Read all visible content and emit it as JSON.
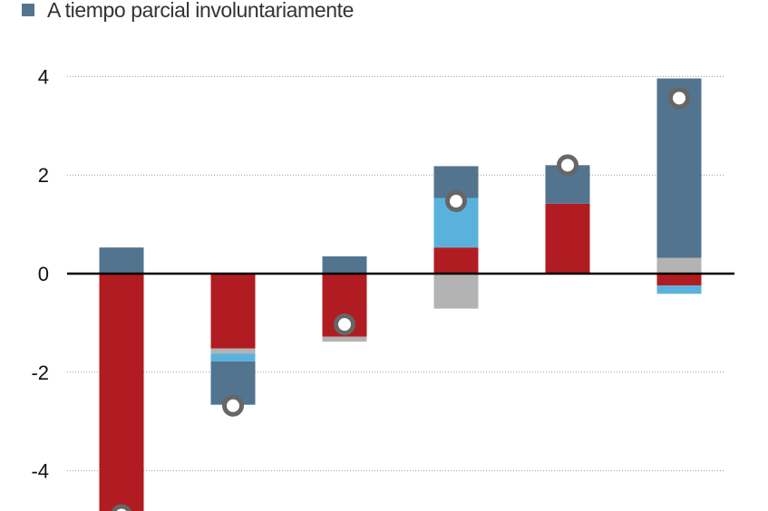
{
  "legend": {
    "label": "A tiempo parcial involuntariamente",
    "color": "#52748f"
  },
  "colors": {
    "involuntary_part_time": "#52748f",
    "red_component": "#b01c22",
    "light_blue_component": "#5ab2dc",
    "gray_component": "#b3b3b3",
    "marker_ring": "#666666",
    "zero_line": "#000000",
    "grid": "#999999"
  },
  "chart_data": {
    "type": "bar",
    "stacked": true,
    "ylim": [
      -4.9,
      4.3
    ],
    "yticks": [
      4,
      2,
      0,
      -2,
      -4
    ],
    "ytick_labels": [
      "4",
      "2",
      "0",
      "-2",
      "-4"
    ],
    "grid": "horizontal dotted",
    "legend_position": "top-left",
    "groups": [
      {
        "segments": [
          {
            "component": "involuntary_part_time",
            "start": 0,
            "end": 0.53
          },
          {
            "component": "red_component",
            "start": 0,
            "end": -4.9
          }
        ],
        "marker": -4.9
      },
      {
        "segments": [
          {
            "component": "red_component",
            "start": 0,
            "end": -1.52
          },
          {
            "component": "gray_component",
            "start": -1.52,
            "end": -1.62
          },
          {
            "component": "light_blue_component",
            "start": -1.62,
            "end": -1.78
          },
          {
            "component": "involuntary_part_time",
            "start": -1.78,
            "end": -2.66
          }
        ],
        "marker": -2.68
      },
      {
        "segments": [
          {
            "component": "involuntary_part_time",
            "start": 0,
            "end": 0.35
          },
          {
            "component": "red_component",
            "start": 0,
            "end": -1.28
          },
          {
            "component": "gray_component",
            "start": -1.28,
            "end": -1.38
          }
        ],
        "marker": -1.03
      },
      {
        "segments": [
          {
            "component": "red_component",
            "start": 0,
            "end": 0.53
          },
          {
            "component": "light_blue_component",
            "start": 0.53,
            "end": 1.53
          },
          {
            "component": "involuntary_part_time",
            "start": 1.53,
            "end": 2.18
          },
          {
            "component": "gray_component",
            "start": 0,
            "end": -0.71
          }
        ],
        "marker": 1.47
      },
      {
        "segments": [
          {
            "component": "red_component",
            "start": 0,
            "end": 1.42
          },
          {
            "component": "involuntary_part_time",
            "start": 1.42,
            "end": 2.2
          }
        ],
        "marker": 2.2
      },
      {
        "segments": [
          {
            "component": "gray_component",
            "start": 0,
            "end": 0.32
          },
          {
            "component": "involuntary_part_time",
            "start": 0.32,
            "end": 3.96
          },
          {
            "component": "red_component",
            "start": 0,
            "end": -0.24
          },
          {
            "component": "light_blue_component",
            "start": -0.24,
            "end": -0.41
          }
        ],
        "marker": 3.56
      }
    ]
  }
}
